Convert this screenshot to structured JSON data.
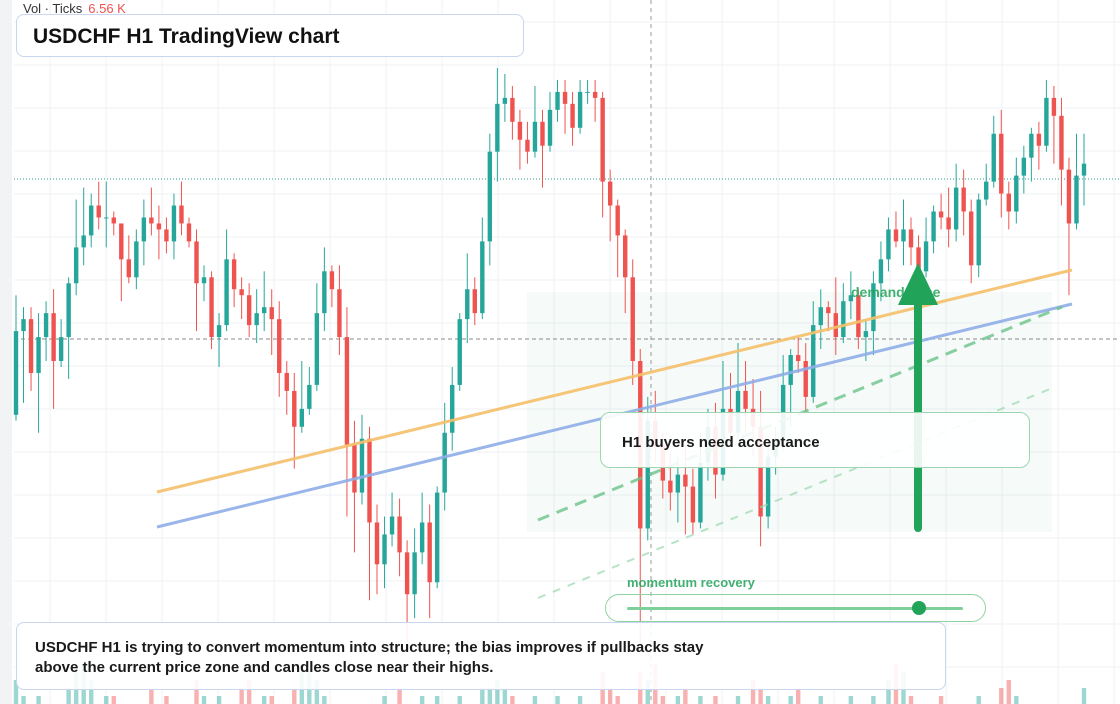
{
  "header": {
    "vol_label": "Vol · Ticks",
    "vol_value": "6.56 K"
  },
  "title": "USDCHF H1 TradingView chart",
  "callout": "H1 buyers need acceptance",
  "zone_label": "demand zone",
  "momentum": {
    "label": "momentum recovery",
    "level": 0.87
  },
  "summary": {
    "line1": "USDCHF H1 is trying to convert momentum into structure; the bias improves if pullbacks stay",
    "line2": "above the current price zone and candles close near their highs."
  },
  "colors": {
    "up": "#26a69a",
    "down": "#ef5350",
    "accent_green": "#22a35a",
    "line_orange": "#f5c06b",
    "line_blue": "#8faee8"
  },
  "chart_data": {
    "type": "candlestick",
    "scale": "price index 0 (low) – 100 (high), unlabeled axis",
    "series": [
      {
        "name": "",
        "values": []
      }
    ],
    "ohlc": [
      [
        41,
        55,
        40,
        61
      ],
      [
        55,
        57,
        43,
        59
      ],
      [
        57,
        48,
        45,
        59
      ],
      [
        48,
        54,
        38,
        58
      ],
      [
        54,
        58,
        50,
        60
      ],
      [
        58,
        50,
        42,
        62
      ],
      [
        50,
        54,
        49,
        57
      ],
      [
        54,
        63,
        47,
        64
      ],
      [
        63,
        69,
        61,
        77
      ],
      [
        69,
        71,
        66,
        79
      ],
      [
        71,
        76,
        69,
        78
      ],
      [
        76,
        74,
        72,
        80
      ],
      [
        74,
        74,
        69,
        80
      ],
      [
        74,
        73,
        71,
        75
      ],
      [
        73,
        67,
        60,
        73
      ],
      [
        67,
        64,
        63,
        71
      ],
      [
        64,
        70,
        62,
        72
      ],
      [
        70,
        74,
        66,
        77
      ],
      [
        74,
        73,
        71,
        79
      ],
      [
        73,
        72,
        67,
        76
      ],
      [
        72,
        70,
        68,
        74
      ],
      [
        70,
        76,
        67,
        78
      ],
      [
        76,
        73,
        71,
        80
      ],
      [
        73,
        70,
        69,
        74
      ],
      [
        70,
        63,
        55,
        72
      ],
      [
        63,
        64,
        60,
        66
      ],
      [
        64,
        54,
        52,
        65
      ],
      [
        54,
        56,
        49,
        58
      ],
      [
        56,
        67,
        55,
        72
      ],
      [
        67,
        62,
        59,
        68
      ],
      [
        62,
        61,
        57,
        64
      ],
      [
        61,
        56,
        54,
        63
      ],
      [
        56,
        58,
        53,
        62
      ],
      [
        58,
        59,
        55,
        65
      ],
      [
        59,
        57,
        51,
        62
      ],
      [
        57,
        48,
        44,
        60
      ],
      [
        48,
        45,
        41,
        50
      ],
      [
        45,
        39,
        32,
        48
      ],
      [
        39,
        42,
        38,
        50
      ],
      [
        42,
        46,
        41,
        49
      ],
      [
        46,
        58,
        45,
        63
      ],
      [
        58,
        65,
        55,
        69
      ],
      [
        65,
        62,
        59,
        66
      ],
      [
        62,
        54,
        51,
        66
      ],
      [
        54,
        36,
        24,
        59
      ],
      [
        36,
        28,
        18,
        40
      ],
      [
        28,
        37,
        26,
        41
      ],
      [
        37,
        23,
        10,
        39
      ],
      [
        23,
        16,
        11,
        26
      ],
      [
        16,
        21,
        12,
        24
      ],
      [
        21,
        24,
        19,
        28
      ],
      [
        24,
        18,
        14,
        27
      ],
      [
        18,
        11,
        3,
        20
      ],
      [
        11,
        18,
        7,
        22
      ],
      [
        18,
        23,
        16,
        28
      ],
      [
        23,
        13,
        7,
        26
      ],
      [
        13,
        28,
        12,
        29
      ],
      [
        28,
        38,
        25,
        43
      ],
      [
        38,
        46,
        35,
        49
      ],
      [
        46,
        57,
        45,
        58
      ],
      [
        57,
        62,
        53,
        68
      ],
      [
        62,
        58,
        56,
        64
      ],
      [
        58,
        70,
        57,
        74
      ],
      [
        70,
        85,
        66,
        88
      ],
      [
        85,
        93,
        80,
        99
      ],
      [
        93,
        94,
        90,
        98
      ],
      [
        94,
        90,
        87,
        96
      ],
      [
        90,
        87,
        82,
        92
      ],
      [
        87,
        85,
        83,
        90
      ],
      [
        85,
        90,
        84,
        96
      ],
      [
        90,
        86,
        79,
        92
      ],
      [
        86,
        92,
        85,
        95
      ],
      [
        92,
        95,
        90,
        97
      ],
      [
        95,
        93,
        88,
        97
      ],
      [
        93,
        89,
        86,
        95
      ],
      [
        89,
        95,
        88,
        97
      ],
      [
        95,
        95,
        93,
        97
      ],
      [
        95,
        94,
        90,
        97
      ],
      [
        94,
        80,
        74,
        95
      ],
      [
        80,
        76,
        70,
        82
      ],
      [
        76,
        71,
        64,
        77
      ],
      [
        71,
        64,
        58,
        72
      ],
      [
        64,
        50,
        46,
        67
      ],
      [
        50,
        22,
        2,
        52
      ],
      [
        22,
        40,
        20,
        44
      ],
      [
        40,
        36,
        33,
        45
      ],
      [
        36,
        30,
        27,
        38
      ],
      [
        30,
        28,
        25,
        35
      ],
      [
        28,
        31,
        23,
        34
      ],
      [
        31,
        29,
        21,
        36
      ],
      [
        29,
        23,
        21,
        32
      ],
      [
        23,
        33,
        22,
        38
      ],
      [
        33,
        39,
        30,
        42
      ],
      [
        39,
        31,
        27,
        43
      ],
      [
        31,
        42,
        30,
        50
      ],
      [
        42,
        38,
        36,
        48
      ],
      [
        38,
        45,
        37,
        53
      ],
      [
        45,
        42,
        38,
        50
      ],
      [
        42,
        39,
        34,
        47
      ],
      [
        39,
        24,
        19,
        45
      ],
      [
        24,
        34,
        22,
        36
      ],
      [
        34,
        37,
        31,
        39
      ],
      [
        37,
        46,
        35,
        51
      ],
      [
        46,
        51,
        39,
        52
      ],
      [
        51,
        50,
        48,
        54
      ],
      [
        50,
        44,
        41,
        53
      ],
      [
        44,
        56,
        43,
        60
      ],
      [
        56,
        59,
        52,
        62
      ],
      [
        59,
        58,
        55,
        60
      ],
      [
        58,
        54,
        51,
        64
      ],
      [
        54,
        60,
        53,
        63
      ],
      [
        60,
        61,
        57,
        65
      ],
      [
        61,
        54,
        52,
        62
      ],
      [
        54,
        55,
        50,
        57
      ],
      [
        55,
        63,
        51,
        65
      ],
      [
        63,
        67,
        60,
        70
      ],
      [
        67,
        72,
        65,
        74
      ],
      [
        72,
        70,
        69,
        75
      ],
      [
        70,
        72,
        66,
        77
      ],
      [
        72,
        69,
        66,
        74
      ],
      [
        69,
        65,
        62,
        71
      ],
      [
        65,
        70,
        64,
        74
      ],
      [
        70,
        75,
        68,
        76
      ],
      [
        75,
        74,
        72,
        78
      ],
      [
        74,
        72,
        69,
        79
      ],
      [
        72,
        79,
        70,
        83
      ],
      [
        79,
        75,
        71,
        82
      ],
      [
        75,
        66,
        63,
        77
      ],
      [
        66,
        77,
        64,
        78
      ],
      [
        77,
        80,
        76,
        83
      ],
      [
        80,
        88,
        79,
        91
      ],
      [
        88,
        78,
        74,
        92
      ],
      [
        78,
        75,
        72,
        80
      ],
      [
        75,
        81,
        73,
        84
      ],
      [
        81,
        84,
        78,
        86
      ],
      [
        84,
        88,
        80,
        89
      ],
      [
        88,
        86,
        82,
        90
      ],
      [
        86,
        94,
        85,
        97
      ],
      [
        94,
        91,
        83,
        96
      ],
      [
        91,
        82,
        76,
        94
      ],
      [
        82,
        73,
        61,
        84
      ],
      [
        73,
        81,
        72,
        88
      ],
      [
        81,
        83,
        76,
        88
      ]
    ],
    "volume": [
      3,
      1,
      0,
      1,
      0,
      0,
      0,
      2,
      4,
      5,
      3,
      0,
      1,
      1,
      0,
      0,
      0,
      0,
      2,
      0,
      1,
      0,
      0,
      0,
      3,
      1,
      0,
      1,
      0,
      0,
      2,
      3,
      0,
      1,
      1,
      0,
      0,
      2,
      5,
      4,
      3,
      1,
      0,
      0,
      0,
      0,
      0,
      0,
      0,
      1,
      0,
      2,
      0,
      0,
      1,
      0,
      1,
      0,
      0,
      1,
      0,
      0,
      2,
      2,
      3,
      2,
      1,
      0,
      0,
      1,
      0,
      0,
      1,
      0,
      0,
      1,
      0,
      0,
      4,
      2,
      1,
      0,
      0,
      4,
      3,
      5,
      1,
      0,
      1,
      2,
      0,
      1,
      0,
      1,
      0,
      0,
      1,
      0,
      3,
      2,
      1,
      0,
      0,
      1,
      2,
      0,
      0,
      1,
      0,
      0,
      0,
      1,
      0,
      0,
      1,
      0,
      3,
      5,
      4,
      1,
      0,
      0,
      0,
      1,
      0,
      0,
      0,
      0,
      1,
      0,
      0,
      2,
      3,
      1,
      0,
      0,
      0,
      0,
      0,
      0,
      0,
      0,
      2,
      0,
      14,
      12,
      8,
      3,
      2
    ],
    "annotations": [
      "demand zone",
      "momentum recovery",
      "H1 buyers need acceptance"
    ],
    "grid": "on",
    "legend": "none"
  }
}
